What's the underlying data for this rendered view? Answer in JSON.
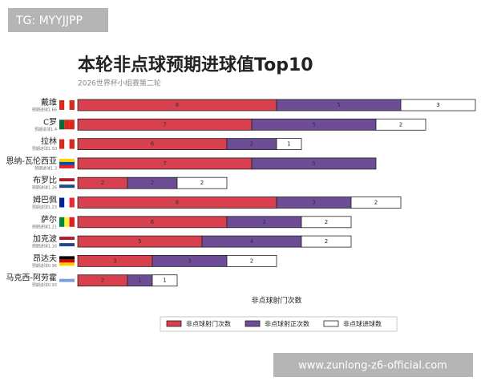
{
  "chart_data": {
    "type": "stacked-bar-horizontal",
    "title": "本轮非点球预期进球值Top10",
    "subtitle": "2026世界杯小组赛第二轮",
    "x_label": "非点球射门次数",
    "categories": [
      "戴维",
      "C罗",
      "拉林",
      "恩纳-瓦伦西亚",
      "布罗比",
      "姆巴佩",
      "萨尔",
      "加克波",
      "昂达夫",
      "马克西-阿劳霍"
    ],
    "notes": [
      "预期进球1.66",
      "预期进球1.4",
      "预期进球1.50",
      "预期进球1.3",
      "预期进球1.26",
      "预期进球1.23",
      "预期进球1.21",
      "预期进球1.16",
      "预期进球0.96",
      "预期进球0.93"
    ],
    "xlim": [
      0,
      16
    ],
    "series": [
      {
        "name": "非点球射门次数",
        "color": "#d8404e",
        "values": [
          8,
          7,
          6,
          7,
          2,
          8,
          6,
          5,
          3,
          2
        ]
      },
      {
        "name": "非点球射正次数",
        "color": "#6c4d96",
        "values": [
          5,
          5,
          2,
          5,
          2,
          3,
          3,
          4,
          3,
          1
        ]
      },
      {
        "name": "非点球进球数",
        "color": "#ffffff",
        "values": [
          3,
          2,
          1,
          0,
          2,
          2,
          2,
          2,
          2,
          1
        ]
      }
    ]
  },
  "watermarks": [
    "TG: MYYJJPP",
    "www.zunlong-z6-official.com"
  ]
}
